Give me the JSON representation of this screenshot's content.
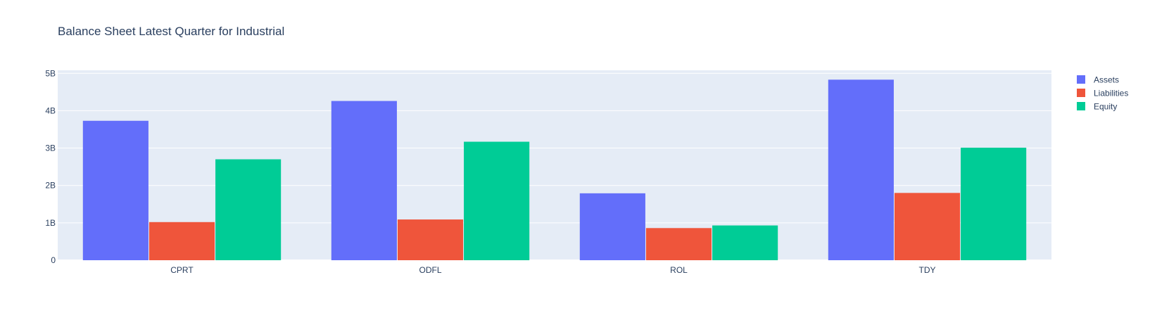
{
  "chart_data": {
    "type": "bar",
    "title": "Balance Sheet Latest Quarter for Industrial",
    "categories": [
      "CPRT",
      "ODFL",
      "ROL",
      "TDY"
    ],
    "series": [
      {
        "name": "Assets",
        "color": "#636efa",
        "values": [
          3.73,
          4.26,
          1.79,
          4.83
        ]
      },
      {
        "name": "Liabilities",
        "color": "#ef553b",
        "values": [
          1.02,
          1.09,
          0.86,
          1.8
        ]
      },
      {
        "name": "Equity",
        "color": "#00cc96",
        "values": [
          2.7,
          3.17,
          0.93,
          3.01
        ]
      }
    ],
    "value_unit": "billions",
    "ylim": [
      0,
      5.08
    ],
    "yticks": [
      0,
      1,
      2,
      3,
      4,
      5
    ],
    "ytick_labels": [
      "0",
      "1B",
      "2B",
      "3B",
      "4B",
      "5B"
    ],
    "grid": true,
    "legend_position": "top-right",
    "plot_background": "#e5ecf6",
    "text_color": "#2a3f5f"
  }
}
